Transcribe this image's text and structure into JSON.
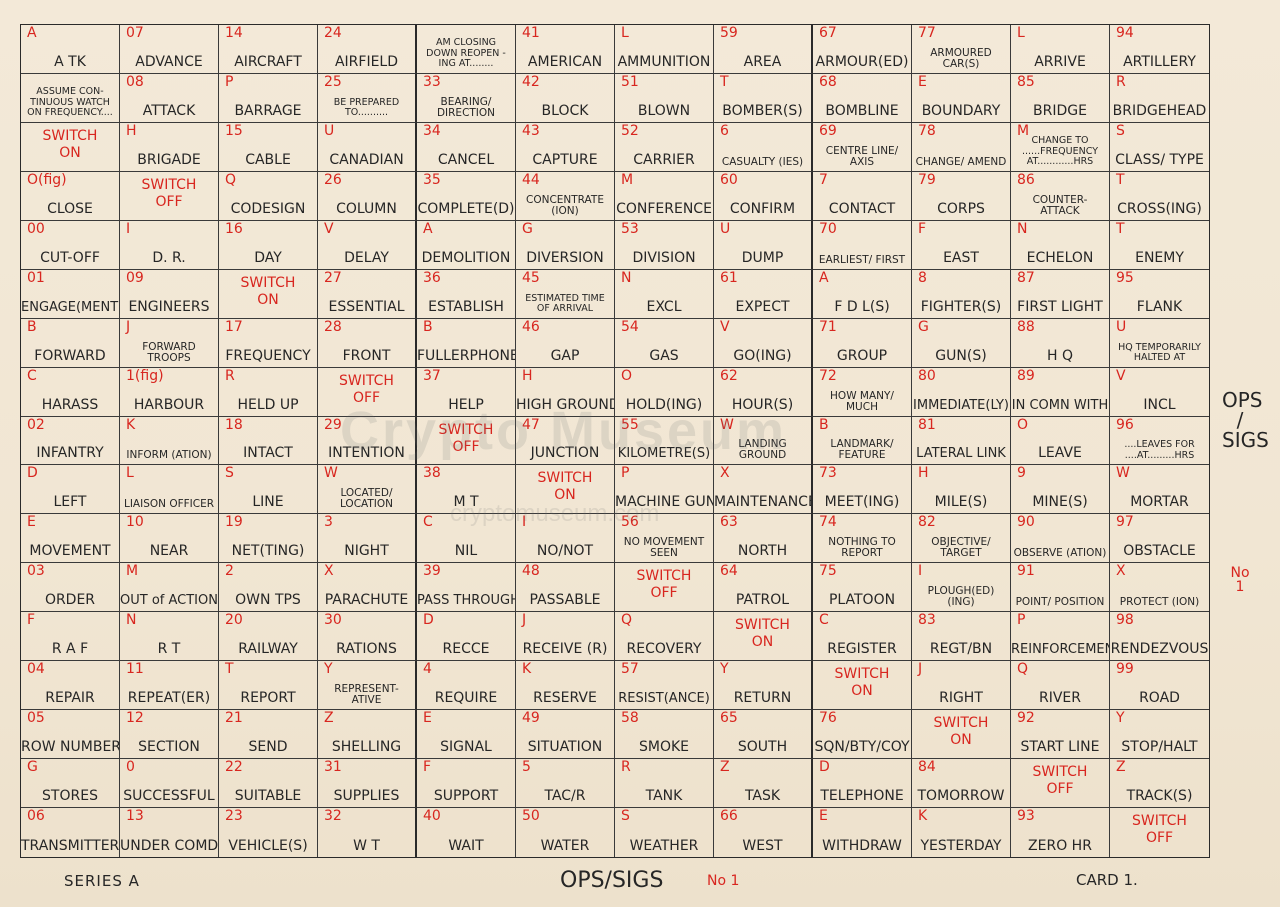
{
  "side_title": [
    "OPS",
    "/",
    "SIGS"
  ],
  "side_number": [
    "No",
    "1"
  ],
  "footer": {
    "series": "SERIES  A",
    "title": "OPS/SIGS",
    "number": "No 1",
    "card": "CARD 1."
  },
  "watermark": {
    "text": "Crypto Museum",
    "url": "cryptomuseum.com"
  },
  "grid": [
    [
      [
        "A",
        "A TK"
      ],
      [
        "07",
        "ADVANCE"
      ],
      [
        "14",
        "AIRCRAFT"
      ],
      [
        "24",
        "AIRFIELD"
      ],
      [
        "",
        "AM CLOSING DOWN REOPEN -ING AT........"
      ],
      [
        "41",
        "AMERICAN"
      ],
      [
        "L",
        "AMMUNITION"
      ],
      [
        "59",
        "AREA"
      ],
      [
        "67",
        "ARMOUR(ED)"
      ],
      [
        "77",
        "ARMOURED CAR(S)"
      ],
      [
        "L",
        "ARRIVE"
      ],
      [
        "94",
        "ARTILLERY"
      ]
    ],
    [
      [
        "",
        "ASSUME CON- TINUOUS WATCH ON FREQUENCY...."
      ],
      [
        "08",
        "ATTACK"
      ],
      [
        "P",
        "BARRAGE"
      ],
      [
        "25",
        "BE PREPARED TO.........."
      ],
      [
        "33",
        "BEARING/ DIRECTION"
      ],
      [
        "42",
        "BLOCK"
      ],
      [
        "51",
        "BLOWN"
      ],
      [
        "T",
        "BOMBER(S)"
      ],
      [
        "68",
        "BOMBLINE"
      ],
      [
        "E",
        "BOUNDARY"
      ],
      [
        "85",
        "BRIDGE"
      ],
      [
        "R",
        "BRIDGEHEAD"
      ]
    ],
    [
      [
        "",
        "SWITCH ON"
      ],
      [
        "H",
        "BRIGADE"
      ],
      [
        "15",
        "CABLE"
      ],
      [
        "U",
        "CANADIAN"
      ],
      [
        "34",
        "CANCEL"
      ],
      [
        "43",
        "CAPTURE"
      ],
      [
        "52",
        "CARRIER"
      ],
      [
        "6",
        "CASUALTY (IES)"
      ],
      [
        "69",
        "CENTRE LINE/ AXIS"
      ],
      [
        "78",
        "CHANGE/ AMEND"
      ],
      [
        "M",
        "CHANGE TO ......FREQUENCY AT............HRS"
      ],
      [
        "S",
        "CLASS/ TYPE"
      ]
    ],
    [
      [
        "O(fig)",
        "CLOSE"
      ],
      [
        "",
        "SWITCH OFF"
      ],
      [
        "Q",
        "CODESIGN"
      ],
      [
        "26",
        "COLUMN"
      ],
      [
        "35",
        "COMPLETE(D)"
      ],
      [
        "44",
        "CONCENTRATE (ION)"
      ],
      [
        "M",
        "CONFERENCE"
      ],
      [
        "60",
        "CONFIRM"
      ],
      [
        "7",
        "CONTACT"
      ],
      [
        "79",
        "CORPS"
      ],
      [
        "86",
        "COUNTER- ATTACK"
      ],
      [
        "T",
        "CROSS(ING)"
      ]
    ],
    [
      [
        "00",
        "CUT-OFF"
      ],
      [
        "I",
        "D. R."
      ],
      [
        "16",
        "DAY"
      ],
      [
        "V",
        "DELAY"
      ],
      [
        "A",
        "DEMOLITION"
      ],
      [
        "G",
        "DIVERSION"
      ],
      [
        "53",
        "DIVISION"
      ],
      [
        "U",
        "DUMP"
      ],
      [
        "70",
        "EARLIEST/ FIRST"
      ],
      [
        "F",
        "EAST"
      ],
      [
        "N",
        "ECHELON"
      ],
      [
        "T",
        "ENEMY"
      ]
    ],
    [
      [
        "01",
        "ENGAGE(MENT)"
      ],
      [
        "09",
        "ENGINEERS"
      ],
      [
        "",
        "SWITCH ON"
      ],
      [
        "27",
        "ESSENTIAL"
      ],
      [
        "36",
        "ESTABLISH"
      ],
      [
        "45",
        "ESTIMATED TIME OF ARRIVAL"
      ],
      [
        "N",
        "EXCL"
      ],
      [
        "61",
        "EXPECT"
      ],
      [
        "A",
        "F D L(S)"
      ],
      [
        "8",
        "FIGHTER(S)"
      ],
      [
        "87",
        "FIRST LIGHT"
      ],
      [
        "95",
        "FLANK"
      ]
    ],
    [
      [
        "B",
        "FORWARD"
      ],
      [
        "J",
        "FORWARD TROOPS"
      ],
      [
        "17",
        "FREQUENCY"
      ],
      [
        "28",
        "FRONT"
      ],
      [
        "B",
        "FULLERPHONE"
      ],
      [
        "46",
        "GAP"
      ],
      [
        "54",
        "GAS"
      ],
      [
        "V",
        "GO(ING)"
      ],
      [
        "71",
        "GROUP"
      ],
      [
        "G",
        "GUN(S)"
      ],
      [
        "88",
        "H Q"
      ],
      [
        "U",
        "HQ TEMPORARILY HALTED AT"
      ]
    ],
    [
      [
        "C",
        "HARASS"
      ],
      [
        "1(fig)",
        "HARBOUR"
      ],
      [
        "R",
        "HELD UP"
      ],
      [
        "",
        "SWITCH OFF"
      ],
      [
        "37",
        "HELP"
      ],
      [
        "H",
        "HIGH GROUND"
      ],
      [
        "O",
        "HOLD(ING)"
      ],
      [
        "62",
        "HOUR(S)"
      ],
      [
        "72",
        "HOW MANY/ MUCH"
      ],
      [
        "80",
        "IMMEDIATE(LY)"
      ],
      [
        "89",
        "IN COMN WITH"
      ],
      [
        "V",
        "INCL"
      ]
    ],
    [
      [
        "02",
        "INFANTRY"
      ],
      [
        "K",
        "INFORM (ATION)"
      ],
      [
        "18",
        "INTACT"
      ],
      [
        "29",
        "INTENTION"
      ],
      [
        "",
        "SWITCH OFF"
      ],
      [
        "47",
        "JUNCTION"
      ],
      [
        "55",
        "KILOMETRE(S)"
      ],
      [
        "W",
        "LANDING GROUND"
      ],
      [
        "B",
        "LANDMARK/ FEATURE"
      ],
      [
        "81",
        "LATERAL LINK"
      ],
      [
        "O",
        "LEAVE"
      ],
      [
        "96",
        "....LEAVES FOR ....AT.........HRS"
      ]
    ],
    [
      [
        "D",
        "LEFT"
      ],
      [
        "L",
        "LIAISON OFFICER"
      ],
      [
        "S",
        "LINE"
      ],
      [
        "W",
        "LOCATED/ LOCATION"
      ],
      [
        "38",
        "M T"
      ],
      [
        "",
        "SWITCH ON"
      ],
      [
        "P",
        "MACHINE GUN"
      ],
      [
        "X",
        "MAINTENANCE"
      ],
      [
        "73",
        "MEET(ING)"
      ],
      [
        "H",
        "MILE(S)"
      ],
      [
        "9",
        "MINE(S)"
      ],
      [
        "W",
        "MORTAR"
      ]
    ],
    [
      [
        "E",
        "MOVEMENT"
      ],
      [
        "10",
        "NEAR"
      ],
      [
        "19",
        "NET(TING)"
      ],
      [
        "3",
        "NIGHT"
      ],
      [
        "C",
        "NIL"
      ],
      [
        "I",
        "NO/NOT"
      ],
      [
        "56",
        "NO MOVEMENT SEEN"
      ],
      [
        "63",
        "NORTH"
      ],
      [
        "74",
        "NOTHING TO REPORT"
      ],
      [
        "82",
        "OBJECTIVE/ TARGET"
      ],
      [
        "90",
        "OBSERVE (ATION)"
      ],
      [
        "97",
        "OBSTACLE"
      ]
    ],
    [
      [
        "03",
        "ORDER"
      ],
      [
        "M",
        "OUT of ACTION"
      ],
      [
        "2",
        "OWN TPS"
      ],
      [
        "X",
        "PARACHUTE"
      ],
      [
        "39",
        "PASS THROUGH"
      ],
      [
        "48",
        "PASSABLE"
      ],
      [
        "",
        "SWITCH OFF"
      ],
      [
        "64",
        "PATROL"
      ],
      [
        "75",
        "PLATOON"
      ],
      [
        "I",
        "PLOUGH(ED) (ING)"
      ],
      [
        "91",
        "POINT/ POSITION"
      ],
      [
        "X",
        "PROTECT (ION)"
      ]
    ],
    [
      [
        "F",
        "R A F"
      ],
      [
        "N",
        "R T"
      ],
      [
        "20",
        "RAILWAY"
      ],
      [
        "30",
        "RATIONS"
      ],
      [
        "D",
        "RECCE"
      ],
      [
        "J",
        "RECEIVE (R)"
      ],
      [
        "Q",
        "RECOVERY"
      ],
      [
        "",
        "SWITCH ON"
      ],
      [
        "C",
        "REGISTER"
      ],
      [
        "83",
        "REGT/BN"
      ],
      [
        "P",
        "REINFORCEMENT"
      ],
      [
        "98",
        "RENDEZVOUS"
      ]
    ],
    [
      [
        "04",
        "REPAIR"
      ],
      [
        "11",
        "REPEAT(ER)"
      ],
      [
        "T",
        "REPORT"
      ],
      [
        "Y",
        "REPRESENT- ATIVE"
      ],
      [
        "4",
        "REQUIRE"
      ],
      [
        "K",
        "RESERVE"
      ],
      [
        "57",
        "RESIST(ANCE)"
      ],
      [
        "Y",
        "RETURN"
      ],
      [
        "",
        "SWITCH ON"
      ],
      [
        "J",
        "RIGHT"
      ],
      [
        "Q",
        "RIVER"
      ],
      [
        "99",
        "ROAD"
      ]
    ],
    [
      [
        "05",
        "ROW NUMBER"
      ],
      [
        "12",
        "SECTION"
      ],
      [
        "21",
        "SEND"
      ],
      [
        "Z",
        "SHELLING"
      ],
      [
        "E",
        "SIGNAL"
      ],
      [
        "49",
        "SITUATION"
      ],
      [
        "58",
        "SMOKE"
      ],
      [
        "65",
        "SOUTH"
      ],
      [
        "76",
        "SQN/BTY/COY"
      ],
      [
        "",
        "SWITCH ON"
      ],
      [
        "92",
        "START LINE"
      ],
      [
        "Y",
        "STOP/HALT"
      ]
    ],
    [
      [
        "G",
        "STORES"
      ],
      [
        "0",
        "SUCCESSFUL"
      ],
      [
        "22",
        "SUITABLE"
      ],
      [
        "31",
        "SUPPLIES"
      ],
      [
        "F",
        "SUPPORT"
      ],
      [
        "5",
        "TAC/R"
      ],
      [
        "R",
        "TANK"
      ],
      [
        "Z",
        "TASK"
      ],
      [
        "D",
        "TELEPHONE"
      ],
      [
        "84",
        "TOMORROW"
      ],
      [
        "",
        "SWITCH OFF"
      ],
      [
        "Z",
        "TRACK(S)"
      ]
    ],
    [
      [
        "06",
        "TRANSMITTER"
      ],
      [
        "13",
        "UNDER COMD"
      ],
      [
        "23",
        "VEHICLE(S)"
      ],
      [
        "32",
        "W T"
      ],
      [
        "40",
        "WAIT"
      ],
      [
        "50",
        "WATER"
      ],
      [
        "S",
        "WEATHER"
      ],
      [
        "66",
        "WEST"
      ],
      [
        "E",
        "WITHDRAW"
      ],
      [
        "K",
        "YESTERDAY"
      ],
      [
        "93",
        "ZERO HR"
      ],
      [
        "",
        "SWITCH OFF"
      ]
    ]
  ]
}
